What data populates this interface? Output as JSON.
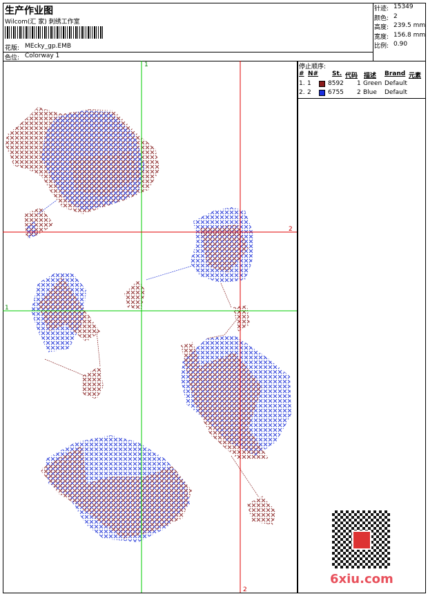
{
  "header": {
    "title": "生产作业图",
    "studio": "Wilcom(汇 家) 刺绣工作室",
    "design_label": "花版:",
    "design": "MEcky_gp.EMB",
    "colorway_label": "色位:",
    "colorway": "Colorway 1"
  },
  "info": [
    {
      "label": "针迹:",
      "value": "15349"
    },
    {
      "label": "颜色:",
      "value": "2"
    },
    {
      "label": "高度:",
      "value": "239.5 mm"
    },
    {
      "label": "宽度:",
      "value": "156.8 mm"
    },
    {
      "label": "比例:",
      "value": "0.90"
    }
  ],
  "stop_sequence": {
    "title": "停止顺序:",
    "columns": [
      "#",
      "N#",
      "St.",
      "代码",
      "描述",
      "Brand",
      "元素"
    ],
    "rows": [
      {
        "index": "1.",
        "n": "1",
        "color": "#8b1a1a",
        "st": "8592",
        "code": "1",
        "desc": "Green",
        "brand": "Default"
      },
      {
        "index": "2.",
        "n": "2",
        "color": "#1a2ee0",
        "st": "6755",
        "code": "2",
        "desc": "Blue",
        "brand": "Default"
      }
    ]
  },
  "guides": {
    "green_vertical": "1",
    "red_horizontal": "2",
    "green_horizontal": "1",
    "red_vertical": "2"
  },
  "watermark": "6xiu.com"
}
